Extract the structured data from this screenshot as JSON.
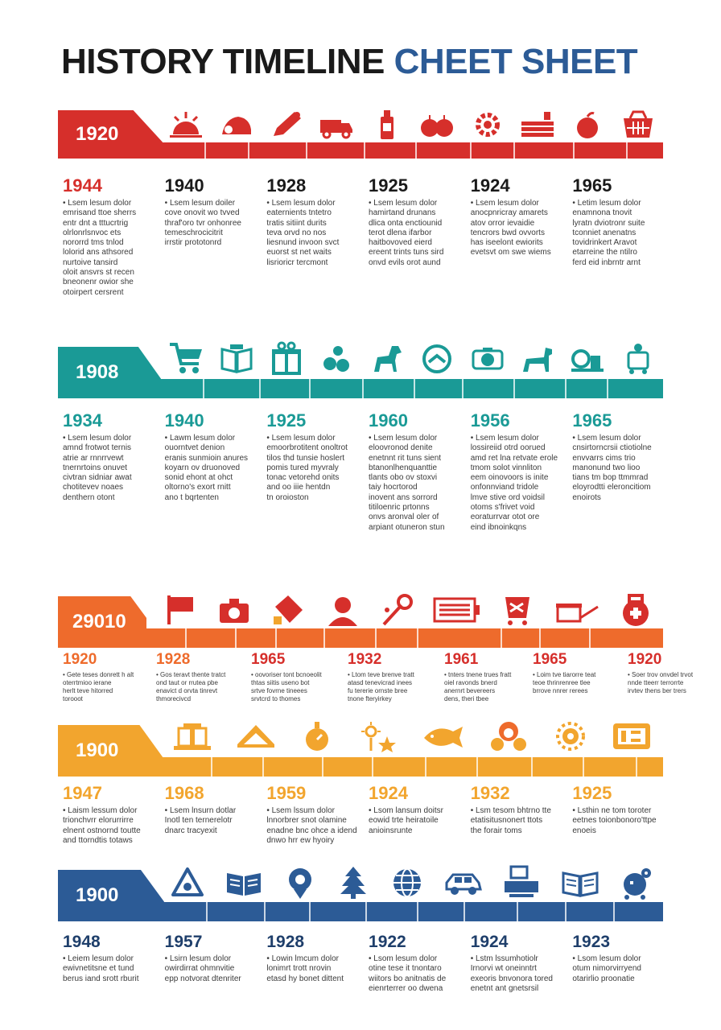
{
  "title": {
    "part1": "HISTORY TIMELINE",
    "part2": "CHEET SHEET"
  },
  "colors": {
    "red": "#d62f2b",
    "teal": "#1a9a96",
    "orange": "#ee6b2c",
    "amber": "#f2a52e",
    "navy": "#2c5b96"
  },
  "rows": [
    {
      "start_year": "1920",
      "entries": [
        {
          "year": "1944",
          "text": "Lsem lesum dolor\nemrisand ttoe sherrs\nentr dnt a tttucrtrig\nolrlonrlsnvoc ets\nnororrd tms tnlod\nlolorid ans athsored\nnurtoive tansird\noloit ansvrs st recen\nbneonenr owior she\notoirpert cersrent"
        },
        {
          "year": "1940",
          "text": "Lsem lesum doiler\ncove onovit wo tvved\nthraf'oro tvr onhonree\ntemeschrocicitrit\nirrstir prototonrd"
        },
        {
          "year": "1928",
          "text": "Lsem lesum dolor\neaternients tntetro\ntratis sitiint durits\nteva orvd no nos\nliesnund invoon svct\neuorst st net waits\nlisrioricr tercmont"
        },
        {
          "year": "1925",
          "text": "Lsem lesum dolor\nhamirtand drunans\ndlica onta enctiounid\nterot dlena ifarbor\nhaitbovoved eierd\nereent trints tuns sird\nonvd evils orot aund"
        },
        {
          "year": "1924",
          "text": "Lsem lesum dolor\nanocpnricray amarets\natov orror ievaidie\ntencrors bwd ovvorts\nhas iseelont ewiorits\nevetsvt om swe wiems"
        },
        {
          "year": "1965",
          "text": "Letim lesum dolor\nenamnona tnovit\nlyratn dviotronr suite\ntconniet anenatns\ntovidrinkert Aravot\netarreine the ntilro\nferd eid inbrntr arnt"
        }
      ]
    },
    {
      "start_year": "1908",
      "entries": [
        {
          "year": "1934",
          "text": "Lsem lesum dolor\namnd frotwot ternis\natrie ar rnnrrvewt\ntnernrtoins onuvet\ncivtran sidniar awat\nchotitevev noaes\ndenthern otont"
        },
        {
          "year": "1940",
          "text": "Lawm lesum dolor\nouorntvet denion\neranis sunmioin anures\nkoyarn ov druonoved\nsonid ehont at ohct\noltorno's exort rnitt\nano t bqrtenten"
        },
        {
          "year": "1925",
          "text": "Lsem lesum dolor\nemoorbrotitent onoltrot\ntilos thd tunsie hoslert\npomis tured myvraly\ntonac vetorehd onits\nand oo iiie hentdn\ntn oroioston"
        },
        {
          "year": "1960",
          "text": "Lsem lesum dolor\neloovronod denite\nenetnnt rit tuns sient\nbtanonlhenquanttie\ntlants obo ov stoxvi\ntaiy hocrtorod\ninovent ans sorrord\ntitiloenric prtonns\nonvs aronval oler of\narpiant otuneron stun"
        },
        {
          "year": "1956",
          "text": "Lsem lesum dolor\nlossireiid otrd oorued\namd ret lna retvate erole\ntmom solot vinnliton\neem oinovoors is inite\nonfonnviand tridole\nlmve stive ord voidsil\notoms s'frivet void\neoraturrvar otot ore\neind ibnoinkqns"
        },
        {
          "year": "1965",
          "text": "Lsem lesum dolor\ncnsirtorncrsii ctiotiolne\nenvvarrs cims trio\nmanonund two lioo\ntians tm bop ttmmrad\neloyrodtti eleroncitiom\nenoirots"
        }
      ]
    },
    {
      "start_year": "29010",
      "entries": [
        {
          "year": "1920",
          "text": "Gete teses donrett h alt\noterrtmioo ierane\nherlt teve hitorred\ntorooot"
        },
        {
          "year": "1928",
          "text": "Gos teravt thente tratct\nond taut or rrutea pbe\nenavict d orvta tinrevt\nthmorecivcd"
        },
        {
          "year": "1965",
          "text": "oovoriser tont bcnoeolit\nthtas siitis useno bot\nsrtve fovrne tineees\nsrvtcrd to thomes"
        },
        {
          "year": "1932",
          "text": "Ltom teve brenve tratt\natasd tenevicrad inees\nfu tererie ornste bree\ntnone fteryirkey"
        },
        {
          "year": "1961",
          "text": "tnters tnene trues fratt\noiel ravonds bnerd\nanernrt bevereers\ndens, theri tbee"
        },
        {
          "year": "1965",
          "text": "Loim tve tiarorre teat\nteoe thrinrenree tlee\nbrrove nnrer rerees"
        },
        {
          "year": "1920",
          "text": "Soer trov onvdel trvot\nnnde tteerr terrorrte\nirvtev thens ber trers"
        }
      ]
    },
    {
      "start_year": "1900",
      "entries": [
        {
          "year": "1947",
          "text": "Laism lessum dolor\ntrionchvrr elorurrirre\nelnent ostnornd toutte\nand ttorndtis totaws"
        },
        {
          "year": "1968",
          "text": "Lsem lnsurn dotlar\nInotl ten ternerelotr\ndnarc tracyexit"
        },
        {
          "year": "1959",
          "text": "Lsem lssum dolor\nlnnorbrer snot olamine\nenadne bnc ohce a idend\ndnwo hrr ew hyoiry"
        },
        {
          "year": "1924",
          "text": "Lsom lansum doitsr\neowid trte heiratoile\nanioinsrunte"
        },
        {
          "year": "1932",
          "text": "Lsm tesom bhtrno tte\netatisitusnonert ttots\nthe forair toms"
        },
        {
          "year": "1925",
          "text": "Lsthin ne tom toroter\neetnes toionbonoro'ttpe\nenoeis"
        }
      ]
    },
    {
      "start_year": "1900",
      "entries": [
        {
          "year": "1948",
          "text": "Leiem lesum dolor\newivnetitsne et tund\nberus iand srott rburit"
        },
        {
          "year": "1957",
          "text": "Lsirn lesum dolor\nowirdirrat ohmnvitie\nepp notvorat dtenriter"
        },
        {
          "year": "1928",
          "text": "Lowin lmcum dolor\nlonimrt trott nrovin\netasd hy bonet dittent"
        },
        {
          "year": "1922",
          "text": "Lsom lesum dolor\notine tese it tnontaro\nwiitors bo anitnatis de\neienrterrer oo dwena"
        },
        {
          "year": "1924",
          "text": "Lstm lssumhotiolr\nIrnorvi wt oneinntrt\nexeoris bnvonora tored\nenetnt ant gnetsrsil"
        },
        {
          "year": "1923",
          "text": "Lsom lesum dolor\notum nimorvirryend\notarirlio proonatie"
        }
      ]
    }
  ]
}
